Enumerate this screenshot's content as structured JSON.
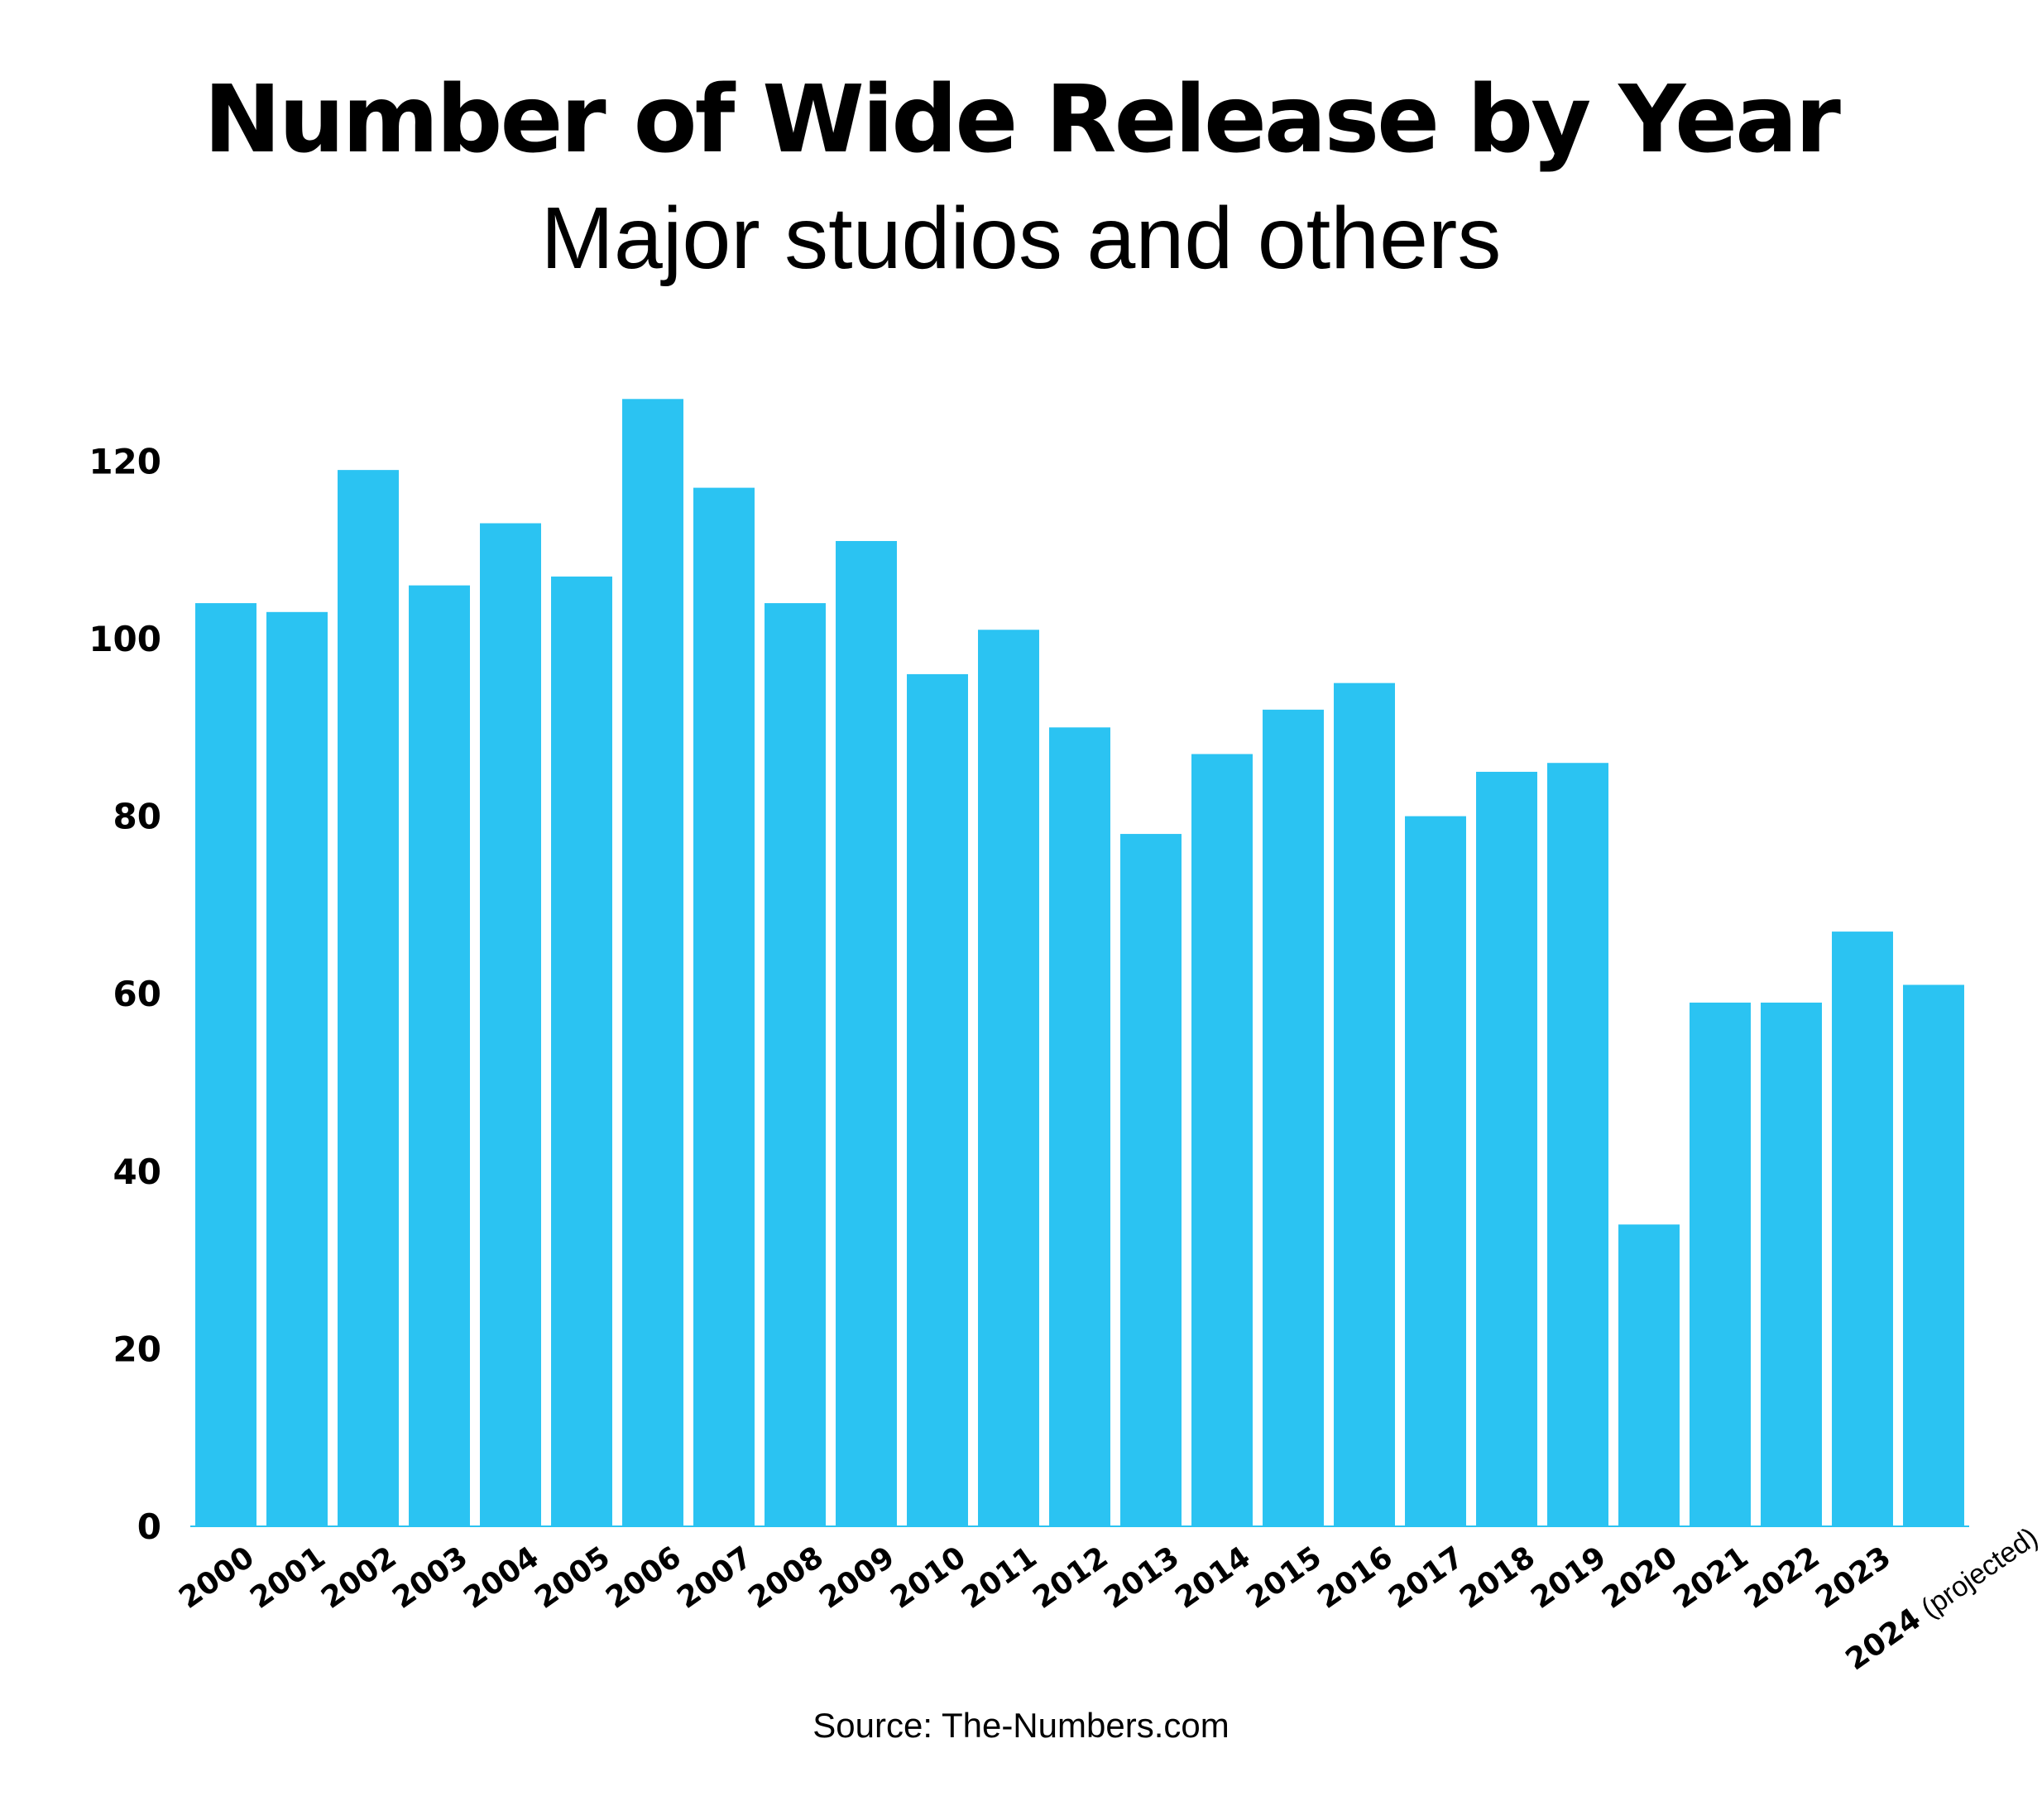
{
  "chart_data": {
    "type": "bar",
    "title": "Number of Wide Release by Year",
    "subtitle": "Major studios and others",
    "xlabel": "",
    "ylabel": "",
    "ylim": [
      0,
      128
    ],
    "yticks": [
      0,
      20,
      40,
      60,
      80,
      100,
      120
    ],
    "grid": false,
    "bar_color": "#2BC3F2",
    "categories": [
      "2000",
      "2001",
      "2002",
      "2003",
      "2004",
      "2005",
      "2006",
      "2007",
      "2008",
      "2009",
      "2010",
      "2011",
      "2012",
      "2013",
      "2014",
      "2015",
      "2016",
      "2017",
      "2018",
      "2019",
      "2020",
      "2021",
      "2022",
      "2023",
      "2024"
    ],
    "category_notes": {
      "2024": "(projected)"
    },
    "values": [
      104,
      103,
      119,
      106,
      113,
      107,
      127,
      117,
      104,
      111,
      96,
      101,
      90,
      78,
      87,
      92,
      95,
      80,
      85,
      86,
      34,
      59,
      59,
      67,
      61
    ],
    "source": "Source: The-Numbers.com"
  }
}
